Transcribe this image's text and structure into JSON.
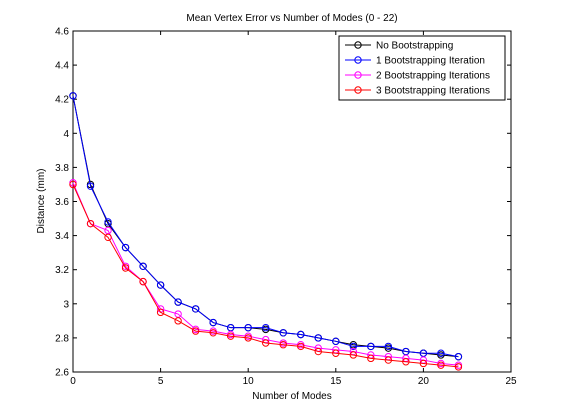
{
  "chart_data": {
    "type": "line",
    "title": "Mean Vertex Error vs Number of Modes (0 - 22)",
    "xlabel": "Number of Modes",
    "ylabel": "Distance (mm)",
    "xlim": [
      0,
      25
    ],
    "ylim": [
      2.6,
      4.6
    ],
    "xticks": [
      "0",
      "5",
      "10",
      "15",
      "20",
      "25"
    ],
    "yticks": [
      "2.6",
      "2.8",
      "3",
      "3.2",
      "3.4",
      "3.6",
      "3.8",
      "4",
      "4.2",
      "4.4",
      "4.6"
    ],
    "grid": false,
    "legend_position": "top-right",
    "marker": "circle",
    "x": [
      0,
      1,
      2,
      3,
      4,
      5,
      6,
      7,
      8,
      9,
      10,
      11,
      12,
      13,
      14,
      15,
      16,
      17,
      18,
      19,
      20,
      21,
      22
    ],
    "series": [
      {
        "name": "No Bootstrapping",
        "color": "#000000",
        "values": [
          4.22,
          3.7,
          3.47,
          3.33,
          3.22,
          3.11,
          3.01,
          2.97,
          2.89,
          2.86,
          2.86,
          2.85,
          2.83,
          2.82,
          2.8,
          2.78,
          2.76,
          2.75,
          2.74,
          2.72,
          2.71,
          2.7,
          2.69
        ]
      },
      {
        "name": "1 Bootstrapping Iteration",
        "color": "#0000ff",
        "values": [
          4.22,
          3.69,
          3.48,
          3.33,
          3.22,
          3.11,
          3.01,
          2.97,
          2.89,
          2.86,
          2.86,
          2.86,
          2.83,
          2.82,
          2.8,
          2.78,
          2.75,
          2.75,
          2.75,
          2.72,
          2.71,
          2.71,
          2.69
        ]
      },
      {
        "name": "2 Bootstrapping Iterations",
        "color": "#ff00ff",
        "values": [
          3.71,
          3.47,
          3.43,
          3.22,
          3.13,
          2.97,
          2.94,
          2.85,
          2.84,
          2.82,
          2.81,
          2.79,
          2.77,
          2.76,
          2.74,
          2.73,
          2.72,
          2.7,
          2.69,
          2.68,
          2.67,
          2.65,
          2.64
        ]
      },
      {
        "name": "3 Bootstrapping Iterations",
        "color": "#ff0000",
        "values": [
          3.7,
          3.47,
          3.39,
          3.21,
          3.13,
          2.95,
          2.9,
          2.84,
          2.83,
          2.81,
          2.8,
          2.77,
          2.76,
          2.75,
          2.72,
          2.71,
          2.7,
          2.68,
          2.67,
          2.66,
          2.65,
          2.64,
          2.63
        ]
      }
    ]
  }
}
